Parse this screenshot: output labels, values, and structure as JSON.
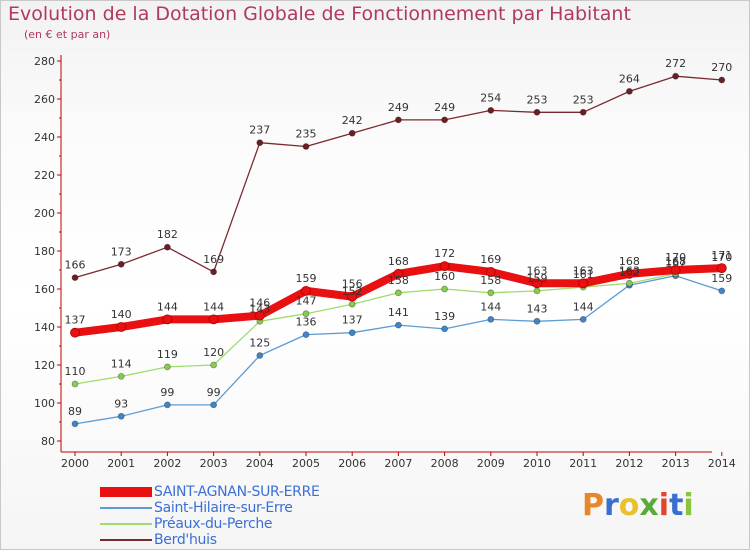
{
  "header": {
    "title": "Evolution de la Dotation Globale de Fonctionnement par Habitant",
    "subtitle": "(en € et par an)"
  },
  "logo": {
    "text": "Proxiti",
    "colors": [
      "#e8872a",
      "#3a6fd0",
      "#e8c22a",
      "#5aaa3a",
      "#e0462e",
      "#3a6fd0",
      "#8ac43a"
    ]
  },
  "chart_data": {
    "type": "line",
    "title": "Evolution de la Dotation Globale de Fonctionnement par Habitant",
    "subtitle": "(en € et par an)",
    "xlabel": "",
    "ylabel": "",
    "ylim": [
      80,
      280
    ],
    "yticks": [
      80,
      100,
      120,
      140,
      160,
      180,
      200,
      220,
      240,
      260,
      280
    ],
    "grid": false,
    "legend_position": "bottom-left",
    "x": [
      "2000",
      "2001",
      "2002",
      "2003",
      "2004",
      "2005",
      "2006",
      "2007",
      "2008",
      "2009",
      "2010",
      "2011",
      "2012",
      "2013",
      "2014"
    ],
    "series": [
      {
        "name": "Berd'huis",
        "color": "#7a2a2e",
        "marker_color": "#6b1f24",
        "values": [
          166,
          173,
          182,
          169,
          237,
          235,
          242,
          249,
          249,
          254,
          253,
          253,
          264,
          272,
          270
        ],
        "labels": [
          "166",
          "173",
          "182",
          "169",
          "237",
          "235",
          "242",
          "249",
          "249",
          "254",
          "253",
          "253",
          "264",
          "272",
          "270"
        ]
      },
      {
        "name": "Saint-Hilaire-sur-Erre",
        "color": "#5d9bd4",
        "marker_color": "#3f86c8",
        "values": [
          89,
          93,
          99,
          99,
          125,
          136,
          137,
          141,
          139,
          144,
          143,
          144,
          162,
          167,
          159
        ],
        "labels": [
          "89",
          "93",
          "99",
          "99",
          "125",
          "136",
          "137",
          "141",
          "139",
          "144",
          "143",
          "144",
          "162",
          "167",
          "159"
        ]
      },
      {
        "name": "Préaux-du-Perche",
        "color": "#9fdc6c",
        "marker_color": "#86cc4e",
        "values": [
          110,
          114,
          119,
          120,
          143,
          147,
          152,
          158,
          160,
          158,
          159,
          161,
          163,
          168,
          170
        ],
        "labels": [
          "110",
          "114",
          "119",
          "120",
          "143",
          "147",
          "152",
          "158",
          "160",
          "158",
          "159",
          "161",
          "163",
          "168",
          "170"
        ]
      },
      {
        "name": "SAINT-AGNAN-SUR-ERRE",
        "color": "#e81010",
        "marker_color": "#e81010",
        "values": [
          137,
          140,
          144,
          144,
          146,
          159,
          156,
          168,
          172,
          169,
          163,
          163,
          168,
          170,
          171
        ],
        "labels": [
          "137",
          "140",
          "144",
          "144",
          "146",
          "159",
          "156",
          "168",
          "172",
          "169",
          "163",
          "163",
          "168",
          "170",
          "171"
        ]
      }
    ]
  },
  "legend": [
    {
      "name": "SAINT-AGNAN-SUR-ERRE",
      "color": "#e81010",
      "thick": true
    },
    {
      "name": "Saint-Hilaire-sur-Erre",
      "color": "#5d9bd4",
      "thick": false
    },
    {
      "name": "Préaux-du-Perche",
      "color": "#9fdc6c",
      "thick": false
    },
    {
      "name": "Berd'huis",
      "color": "#7a2a2e",
      "thick": false
    }
  ]
}
